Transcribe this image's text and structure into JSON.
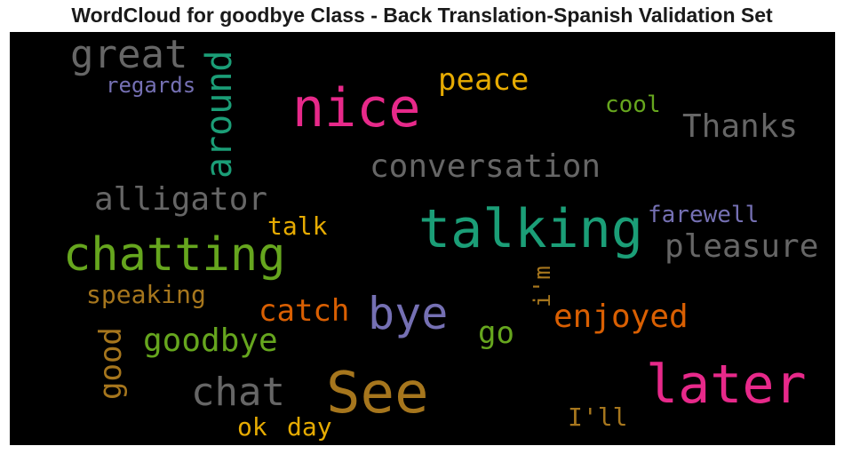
{
  "title": "WordCloud for goodbye Class - Back Translation-Spanish Validation Set",
  "chart_data": {
    "type": "wordcloud",
    "background": "#000000",
    "words": [
      {
        "text": "great",
        "color": "#666666"
      },
      {
        "text": "regards",
        "color": "#7570b3"
      },
      {
        "text": "around",
        "color": "#1b9e77"
      },
      {
        "text": "nice",
        "color": "#e7298a"
      },
      {
        "text": "peace",
        "color": "#e6ab02"
      },
      {
        "text": "cool",
        "color": "#66a61e"
      },
      {
        "text": "Thanks",
        "color": "#666666"
      },
      {
        "text": "conversation",
        "color": "#666666"
      },
      {
        "text": "alligator",
        "color": "#666666"
      },
      {
        "text": "talking",
        "color": "#1b9e77"
      },
      {
        "text": "farewell",
        "color": "#7570b3"
      },
      {
        "text": "talk",
        "color": "#e6ab02"
      },
      {
        "text": "chatting",
        "color": "#66a61e"
      },
      {
        "text": "pleasure",
        "color": "#666666"
      },
      {
        "text": "i'm",
        "color": "#a6761d"
      },
      {
        "text": "speaking",
        "color": "#a6761d"
      },
      {
        "text": "catch",
        "color": "#d95f02"
      },
      {
        "text": "bye",
        "color": "#7570b3"
      },
      {
        "text": "enjoyed",
        "color": "#d95f02"
      },
      {
        "text": "good",
        "color": "#a6761d"
      },
      {
        "text": "goodbye",
        "color": "#66a61e"
      },
      {
        "text": "go",
        "color": "#66a61e"
      },
      {
        "text": "chat",
        "color": "#666666"
      },
      {
        "text": "See",
        "color": "#a6761d"
      },
      {
        "text": "later",
        "color": "#e7298a"
      },
      {
        "text": "I'll",
        "color": "#a6761d"
      },
      {
        "text": "ok",
        "color": "#e6ab02"
      },
      {
        "text": "day",
        "color": "#e6ab02"
      }
    ]
  }
}
